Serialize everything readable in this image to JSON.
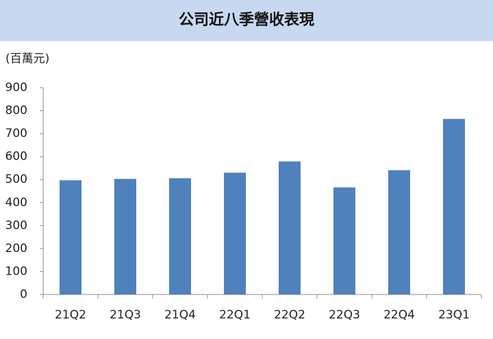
{
  "chart_data": {
    "type": "bar",
    "title": "公司近八季營收表現",
    "y_label": "(百萬元)",
    "categories": [
      "21Q2",
      "21Q3",
      "21Q4",
      "22Q1",
      "22Q2",
      "22Q3",
      "22Q4",
      "23Q1"
    ],
    "values": [
      497,
      503,
      506,
      530,
      579,
      466,
      541,
      764
    ],
    "color": "#4f81bd",
    "ylim": [
      0,
      900
    ],
    "yticks": [
      0,
      100,
      200,
      300,
      400,
      500,
      600,
      700,
      800,
      900
    ],
    "grid": false
  }
}
